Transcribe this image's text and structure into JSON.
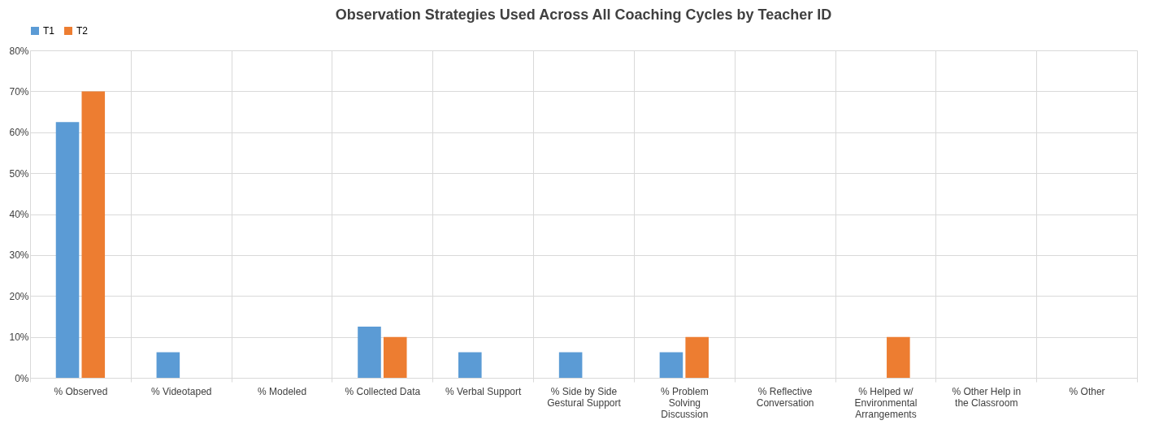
{
  "chart_data": {
    "type": "bar",
    "title": "Observation Strategies Used Across All Coaching Cycles by Teacher ID",
    "categories": [
      "% Observed",
      "% Videotaped",
      "% Modeled",
      "% Collected Data",
      "% Verbal Support",
      "% Side by Side Gestural Support",
      "% Problem Solving Discussion",
      "% Reflective Conversation",
      "% Helped w/ Environmental Arrangements",
      "% Other Help in the Classroom",
      "% Other"
    ],
    "series": [
      {
        "name": "T1",
        "color": "#5b9bd5",
        "values": [
          62.5,
          6.25,
          0,
          12.5,
          6.25,
          6.25,
          6.25,
          0,
          0,
          0,
          0
        ]
      },
      {
        "name": "T2",
        "color": "#ed7d31",
        "values": [
          70,
          0,
          0,
          10,
          0,
          0,
          10,
          0,
          10,
          0,
          0
        ]
      }
    ],
    "ylim": [
      0,
      80
    ],
    "yticks": [
      {
        "value": 0,
        "label": "0%"
      },
      {
        "value": 10,
        "label": "10%"
      },
      {
        "value": 20,
        "label": "20%"
      },
      {
        "value": 30,
        "label": "30%"
      },
      {
        "value": 40,
        "label": "40%"
      },
      {
        "value": 50,
        "label": "50%"
      },
      {
        "value": 60,
        "label": "60%"
      },
      {
        "value": 70,
        "label": "70%"
      },
      {
        "value": 80,
        "label": "80%"
      }
    ],
    "grid": true,
    "legend": "top"
  }
}
